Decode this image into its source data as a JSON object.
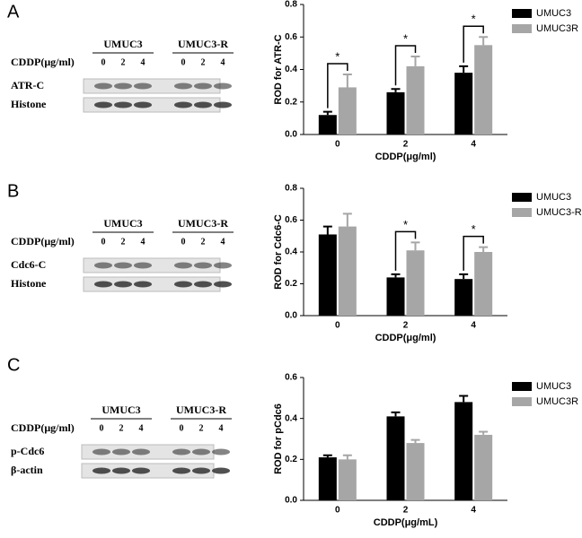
{
  "chart_data": [
    {
      "type": "bar",
      "categories": [
        "0",
        "2",
        "4"
      ],
      "x_label": "CDDP(μg/ml)",
      "y_label": "ROD for ATR-C",
      "ylim": [
        0,
        0.8
      ],
      "yticks": [
        {
          "value": 0,
          "label": "0.0"
        },
        0.2,
        0.4,
        0.6,
        0.8
      ],
      "series": [
        {
          "name": "UMUC3",
          "color": "#000000",
          "values": [
            0.12,
            0.26,
            0.38
          ],
          "errors": [
            0.02,
            0.02,
            0.04
          ]
        },
        {
          "name": "UMUC3R",
          "color": "#a6a6a6",
          "values": [
            0.29,
            0.42,
            0.55
          ],
          "errors": [
            0.08,
            0.06,
            0.05
          ]
        }
      ],
      "annotations": [
        {
          "text": "*",
          "category": "0"
        },
        {
          "text": "*",
          "category": "2"
        },
        {
          "text": "*",
          "category": "4"
        }
      ]
    },
    {
      "type": "bar",
      "categories": [
        "0",
        "2",
        "4"
      ],
      "x_label": "CDDP(μg/ml)",
      "y_label": "ROD for Cdc6-C",
      "ylim": [
        0,
        0.8
      ],
      "yticks": [
        {
          "value": 0,
          "label": "0.0"
        },
        0.2,
        0.4,
        0.6,
        0.8
      ],
      "series": [
        {
          "name": "UMUC3",
          "color": "#000000",
          "values": [
            0.51,
            0.24,
            0.23
          ],
          "errors": [
            0.05,
            0.02,
            0.03
          ]
        },
        {
          "name": "UMUC3-R",
          "color": "#a6a6a6",
          "values": [
            0.56,
            0.41,
            0.4
          ],
          "errors": [
            0.08,
            0.05,
            0.03
          ]
        }
      ],
      "annotations": [
        {
          "text": "*",
          "category": "2"
        },
        {
          "text": "*",
          "category": "4"
        }
      ]
    },
    {
      "type": "bar",
      "categories": [
        "0",
        "2",
        "4"
      ],
      "x_label": "CDDP(μg/mL)",
      "y_label": "ROD for pCdc6",
      "ylim": [
        0,
        0.6
      ],
      "yticks": [
        {
          "value": 0,
          "label": "0.0"
        },
        0.2,
        0.4,
        0.6
      ],
      "series": [
        {
          "name": "UMUC3",
          "color": "#000000",
          "values": [
            0.21,
            0.41,
            0.48
          ],
          "errors": [
            0.01,
            0.02,
            0.03
          ]
        },
        {
          "name": "UMUC3R",
          "color": "#a6a6a6",
          "values": [
            0.2,
            0.28,
            0.32
          ],
          "errors": [
            0.02,
            0.015,
            0.015
          ]
        }
      ],
      "annotations": []
    }
  ],
  "blots": [
    {
      "letter": "A",
      "groups": [
        "UMUC3",
        "UMUC3-R"
      ],
      "dose_label": "CDDP(μg/ml)",
      "lanes": [
        "0",
        "2",
        "4",
        "0",
        "2",
        "4"
      ],
      "rows": [
        "ATR-C",
        "Histone"
      ]
    },
    {
      "letter": "B",
      "groups": [
        "UMUC3",
        "UMUC3-R"
      ],
      "dose_label": "CDDP(μg/ml)",
      "lanes": [
        "0",
        "2",
        "4",
        "0",
        "2",
        "4"
      ],
      "rows": [
        "Cdc6-C",
        "Histone"
      ]
    },
    {
      "letter": "C",
      "groups": [
        "UMUC3",
        "UMUC3-R"
      ],
      "dose_label": "CDDP(μg/ml)",
      "lanes": [
        "0",
        "2",
        "4",
        "0",
        "2",
        "4"
      ],
      "rows": [
        "p-Cdc6",
        "β-actin"
      ]
    }
  ]
}
